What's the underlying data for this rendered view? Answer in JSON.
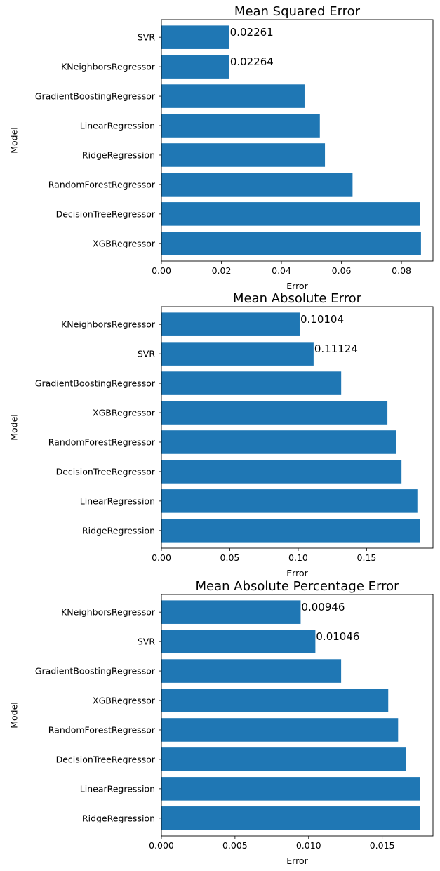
{
  "bar_color": "#1f77b4",
  "chart_data": [
    {
      "type": "bar",
      "orientation": "horizontal",
      "title": "Mean Squared Error",
      "xlabel": "Error",
      "ylabel": "Model",
      "xlim": [
        0,
        0.0905
      ],
      "xticks": [
        0,
        0.02,
        0.04,
        0.06,
        0.08
      ],
      "xtick_labels": [
        "0.00",
        "0.02",
        "0.04",
        "0.06",
        "0.08"
      ],
      "categories": [
        "SVR",
        "KNeighborsRegressor",
        "GradientBoostingRegressor",
        "LinearRegression",
        "RidgeRegression",
        "RandomForestRegressor",
        "DecisionTreeRegressor",
        "XGBRegressor"
      ],
      "values": [
        0.02261,
        0.02264,
        0.0477,
        0.0528,
        0.0545,
        0.0637,
        0.0862,
        0.0865
      ],
      "data_labels": [
        "0.02261",
        "0.02264",
        "",
        "",
        "",
        "",
        "",
        ""
      ]
    },
    {
      "type": "bar",
      "orientation": "horizontal",
      "title": "Mean Absolute Error",
      "xlabel": "Error",
      "ylabel": "Model",
      "xlim": [
        0,
        0.1985
      ],
      "xticks": [
        0,
        0.05,
        0.1,
        0.15
      ],
      "xtick_labels": [
        "0.00",
        "0.05",
        "0.10",
        "0.15"
      ],
      "categories": [
        "KNeighborsRegressor",
        "SVR",
        "GradientBoostingRegressor",
        "XGBRegressor",
        "RandomForestRegressor",
        "DecisionTreeRegressor",
        "LinearRegression",
        "RidgeRegression"
      ],
      "values": [
        0.10104,
        0.11124,
        0.1314,
        0.1652,
        0.1716,
        0.1755,
        0.1871,
        0.1891
      ],
      "data_labels": [
        "0.10104",
        "0.11124",
        "",
        "",
        "",
        "",
        "",
        ""
      ]
    },
    {
      "type": "bar",
      "orientation": "horizontal",
      "title": "Mean Absolute Percentage Error",
      "xlabel": "Error",
      "ylabel": "Model",
      "xlim": [
        0,
        0.01845
      ],
      "xticks": [
        0,
        0.005,
        0.01,
        0.015
      ],
      "xtick_labels": [
        "0.000",
        "0.005",
        "0.010",
        "0.015"
      ],
      "categories": [
        "KNeighborsRegressor",
        "SVR",
        "GradientBoostingRegressor",
        "XGBRegressor",
        "RandomForestRegressor",
        "DecisionTreeRegressor",
        "LinearRegression",
        "RidgeRegression"
      ],
      "values": [
        0.00946,
        0.01046,
        0.01221,
        0.01541,
        0.01608,
        0.01661,
        0.01755,
        0.01758
      ],
      "data_labels": [
        "0.00946",
        "0.01046",
        "",
        "",
        "",
        "",
        "",
        ""
      ]
    }
  ]
}
